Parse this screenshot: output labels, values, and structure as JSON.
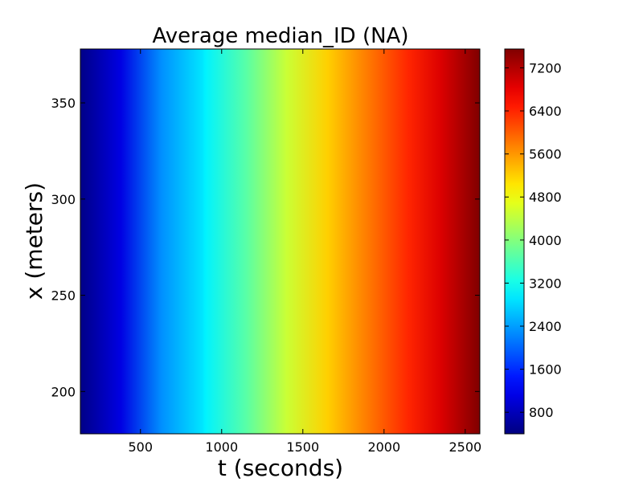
{
  "chart_data": {
    "type": "heatmap",
    "title": "Average median_ID (NA)",
    "xlabel": "t (seconds)",
    "ylabel": "x (meters)",
    "xlim": [
      130,
      2590
    ],
    "ylim": [
      178,
      378
    ],
    "xticks": [
      500,
      1000,
      1500,
      2000,
      2500
    ],
    "xtick_labels": [
      "500",
      "1000",
      "1500",
      "2000",
      "2500"
    ],
    "yticks": [
      200,
      250,
      300,
      350
    ],
    "ytick_labels": [
      "200",
      "250",
      "300",
      "350"
    ],
    "colormap": "jet",
    "colorbar": {
      "vmin": 400,
      "vmax": 7550,
      "ticks": [
        800,
        1600,
        2400,
        3200,
        4000,
        4800,
        5600,
        6400,
        7200
      ],
      "tick_labels": [
        "800",
        "1600",
        "2400",
        "3200",
        "4000",
        "4800",
        "5600",
        "6400",
        "7200"
      ]
    },
    "value_model": "values vary along t only, approximately constant along x",
    "column_values": [
      {
        "t": 130,
        "value": 450
      },
      {
        "t": 380,
        "value": 1100
      },
      {
        "t": 630,
        "value": 2300
      },
      {
        "t": 880,
        "value": 2900
      },
      {
        "t": 900,
        "value": 3000
      },
      {
        "t": 1150,
        "value": 3700
      },
      {
        "t": 1400,
        "value": 4500
      },
      {
        "t": 1650,
        "value": 5200
      },
      {
        "t": 1900,
        "value": 5800
      },
      {
        "t": 2150,
        "value": 6400
      },
      {
        "t": 2350,
        "value": 6900
      },
      {
        "t": 2590,
        "value": 7550
      }
    ],
    "grid": false
  }
}
